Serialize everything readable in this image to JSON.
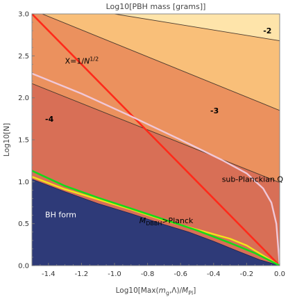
{
  "chart_data": {
    "type": "contour",
    "title": "Log10[PBH mass [grams]]",
    "xlabel_parts": [
      "Log10[Max(",
      "m",
      "g",
      ",Λ)/",
      "M",
      "Pl",
      "]"
    ],
    "ylabel": "Log10[N]",
    "xlim": [
      -1.5,
      0
    ],
    "ylim": [
      0,
      3
    ],
    "xticks": [
      "-1.4",
      "-1.2",
      "-1.0",
      "-0.8",
      "-0.6",
      "-0.4",
      "-0.2",
      "0.0"
    ],
    "xtick_values": [
      -1.4,
      -1.2,
      -1.0,
      -0.8,
      -0.6,
      -0.4,
      -0.2,
      0.0
    ],
    "yticks": [
      "0.0",
      "0.5",
      "1.0",
      "1.5",
      "2.0",
      "2.5",
      "3.0"
    ],
    "ytick_values": [
      0,
      0.5,
      1,
      1.5,
      2,
      2.5,
      3
    ],
    "regions": [
      {
        "label": "BH form",
        "color": "#2e3a78",
        "boundary": [
          [
            -1.5,
            1.03
          ],
          [
            -1.3,
            0.88
          ],
          [
            -1.1,
            0.74
          ],
          [
            -0.9,
            0.62
          ],
          [
            -0.7,
            0.49
          ],
          [
            -0.55,
            0.4
          ],
          [
            -0.4,
            0.29
          ],
          [
            -0.25,
            0.17
          ],
          [
            -0.12,
            0.07
          ],
          [
            0.0,
            0.0
          ]
        ]
      },
      {
        "label": "-4",
        "color": "#d86f56"
      },
      {
        "label": "-3",
        "color": "#eb915e"
      },
      {
        "label": "-2",
        "color": "#f9bf79"
      },
      {
        "color": "#fee4aa"
      }
    ],
    "contours": [
      {
        "label": "-4",
        "line": [
          [
            -1.5,
            2.17
          ],
          [
            0.0,
            0.99
          ]
        ],
        "label_at": [
          -1.42,
          1.75
        ]
      },
      {
        "label": "-3",
        "line": [
          [
            -1.5,
            3.05
          ],
          [
            0.0,
            1.85
          ]
        ],
        "label_at": [
          -0.42,
          1.85
        ]
      },
      {
        "label": "-2",
        "line": [
          [
            -1.0,
            3.0
          ],
          [
            0.0,
            2.68
          ]
        ],
        "label_at": [
          -0.1,
          2.8
        ]
      }
    ],
    "series": [
      {
        "label": "X=1/N^{1/2}",
        "color": "#ff2a1a",
        "x": [
          -1.5,
          0.0
        ],
        "y": [
          3.0,
          0.0
        ]
      },
      {
        "label": "sub-Planckian Q",
        "color": "#f0c8d8",
        "x": [
          -1.5,
          -1.2,
          -0.9,
          -0.6,
          -0.35,
          -0.2,
          -0.1,
          -0.05,
          -0.02,
          0.0
        ],
        "y": [
          2.29,
          2.05,
          1.78,
          1.5,
          1.26,
          1.1,
          0.92,
          0.75,
          0.5,
          0.0
        ]
      },
      {
        "label": "M_DBBH>Planck",
        "color": "#f2e41a",
        "x": [
          -1.5,
          -1.3,
          -1.1,
          -0.9,
          -0.7,
          -0.5,
          -0.3,
          -0.2,
          -0.1,
          0.0
        ],
        "y": [
          1.06,
          0.91,
          0.79,
          0.67,
          0.54,
          0.43,
          0.32,
          0.24,
          0.12,
          0.0
        ]
      },
      {
        "color": "#17d81a",
        "x": [
          -1.5,
          -1.3,
          -1.1,
          -0.9,
          -0.7,
          -0.5,
          -0.3,
          -0.15,
          0.0
        ],
        "y": [
          1.13,
          0.95,
          0.81,
          0.68,
          0.55,
          0.42,
          0.27,
          0.15,
          0.0
        ]
      }
    ],
    "annotations": [
      {
        "text_parts": [
          "X=1/",
          "N",
          "1/2"
        ],
        "at": [
          -1.3,
          2.44
        ],
        "style": "dark"
      },
      {
        "text": "sub-Planckian Q",
        "at": [
          -0.35,
          1.03
        ],
        "style": "dark"
      },
      {
        "text_parts": [
          "M",
          "DBBH",
          ">Planck"
        ],
        "at": [
          -0.85,
          0.54
        ],
        "style": "dark"
      },
      {
        "text": "BH form",
        "at": [
          -1.42,
          0.61
        ],
        "style": "light"
      }
    ]
  }
}
